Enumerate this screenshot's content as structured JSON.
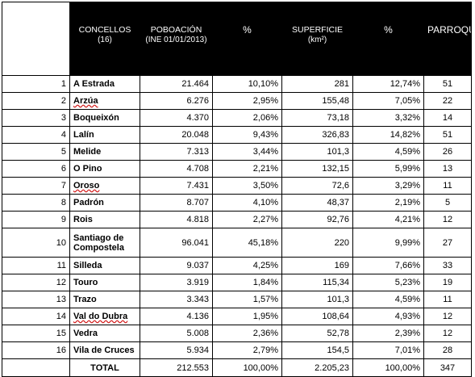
{
  "header": {
    "concellos": "CONCELLOS",
    "concellos_sub": "(16)",
    "poboacion": "POBOACIÓN",
    "poboacion_sub": "(INE 01/01/2013)",
    "pct1": "%",
    "superficie": "SUPERFICIE",
    "superficie_sub": "(km²)",
    "pct2": "%",
    "parroquias": "PARROQUIAS"
  },
  "rows": [
    {
      "n": "1",
      "name": "A Estrada",
      "pob": "21.464",
      "pct_pob": "10,10%",
      "sup": "281",
      "pct_sup": "12,74%",
      "parr": "51"
    },
    {
      "n": "2",
      "name": "Arzúa",
      "pob": "6.276",
      "pct_pob": "2,95%",
      "sup": "155,48",
      "pct_sup": "7,05%",
      "parr": "22"
    },
    {
      "n": "3",
      "name": "Boqueixón",
      "pob": "4.370",
      "pct_pob": "2,06%",
      "sup": "73,18",
      "pct_sup": "3,32%",
      "parr": "14"
    },
    {
      "n": "4",
      "name": "Lalín",
      "pob": "20.048",
      "pct_pob": "9,43%",
      "sup": "326,83",
      "pct_sup": "14,82%",
      "parr": "51"
    },
    {
      "n": "5",
      "name": "Melide",
      "pob": "7.313",
      "pct_pob": "3,44%",
      "sup": "101,3",
      "pct_sup": "4,59%",
      "parr": "26"
    },
    {
      "n": "6",
      "name": "O Pino",
      "pob": "4.708",
      "pct_pob": "2,21%",
      "sup": "132,15",
      "pct_sup": "5,99%",
      "parr": "13"
    },
    {
      "n": "7",
      "name": "Oroso",
      "pob": "7.431",
      "pct_pob": "3,50%",
      "sup": "72,6",
      "pct_sup": "3,29%",
      "parr": "11"
    },
    {
      "n": "8",
      "name": "Padrón",
      "pob": "8.707",
      "pct_pob": "4,10%",
      "sup": "48,37",
      "pct_sup": "2,19%",
      "parr": "5"
    },
    {
      "n": "9",
      "name": "Rois",
      "pob": "4.818",
      "pct_pob": "2,27%",
      "sup": "92,76",
      "pct_sup": "4,21%",
      "parr": "12"
    },
    {
      "n": "10",
      "name": "Santiago de Compostela",
      "pob": "96.041",
      "pct_pob": "45,18%",
      "sup": "220",
      "pct_sup": "9,99%",
      "parr": "27"
    },
    {
      "n": "11",
      "name": "Silleda",
      "pob": "9.037",
      "pct_pob": "4,25%",
      "sup": "169",
      "pct_sup": "7,66%",
      "parr": "33"
    },
    {
      "n": "12",
      "name": "Touro",
      "pob": "3.919",
      "pct_pob": "1,84%",
      "sup": "115,34",
      "pct_sup": "5,23%",
      "parr": "19"
    },
    {
      "n": "13",
      "name": "Trazo",
      "pob": "3.343",
      "pct_pob": "1,57%",
      "sup": "101,3",
      "pct_sup": "4,59%",
      "parr": "11"
    },
    {
      "n": "14",
      "name": "Val do Dubra",
      "pob": "4.136",
      "pct_pob": "1,95%",
      "sup": "108,64",
      "pct_sup": "4,93%",
      "parr": "12"
    },
    {
      "n": "15",
      "name": "Vedra",
      "pob": "5.008",
      "pct_pob": "2,36%",
      "sup": "52,78",
      "pct_sup": "2,39%",
      "parr": "12"
    },
    {
      "n": "16",
      "name": "Vila de Cruces",
      "pob": "5.934",
      "pct_pob": "2,79%",
      "sup": "154,5",
      "pct_sup": "7,01%",
      "parr": "28"
    }
  ],
  "total": {
    "label": "TOTAL",
    "pob": "212.553",
    "pct_pob": "100,00%",
    "sup": "2.205,23",
    "pct_sup": "100,00%",
    "parr": "347"
  }
}
